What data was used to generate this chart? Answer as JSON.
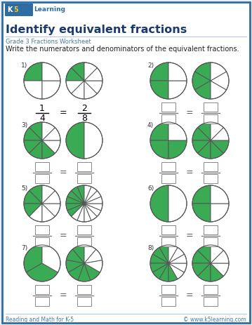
{
  "title": "Identify equivalent fractions",
  "subtitle": "Grade 3 Fractions Worksheet",
  "instruction": "Write the numerators and denominators of the equivalent fractions.",
  "footer_left": "Reading and Math for K-5",
  "footer_right": "© www.k5learning.com",
  "bg_color": "#e8eef5",
  "border_color": "#2e6da4",
  "title_color": "#1a3a6b",
  "subtitle_color": "#4a7aaa",
  "green_color": "#3aaa55",
  "pie_edge_color": "#555555",
  "problems": [
    {
      "num": "1)",
      "pie1": {
        "slices": 4,
        "filled": 1,
        "start_angle": 90
      },
      "pie2": {
        "slices": 8,
        "filled": 2,
        "start_angle": 90
      },
      "frac1_num": "1",
      "frac1_den": "4",
      "frac2_num": "2",
      "frac2_den": "8",
      "show_answer": true
    },
    {
      "num": "2)",
      "pie1": {
        "slices": 4,
        "filled": 2,
        "start_angle": 90
      },
      "pie2": {
        "slices": 6,
        "filled": 3,
        "start_angle": 90
      },
      "show_answer": false
    },
    {
      "num": "3)",
      "pie1": {
        "slices": 8,
        "filled": 5,
        "start_angle": 90
      },
      "pie2": {
        "slices": 2,
        "filled": 1,
        "start_angle": 90
      },
      "show_answer": false
    },
    {
      "num": "4)",
      "pie1": {
        "slices": 4,
        "filled": 3,
        "start_angle": 90
      },
      "pie2": {
        "slices": 8,
        "filled": 6,
        "start_angle": 90
      },
      "show_answer": false
    },
    {
      "num": "5)",
      "pie1": {
        "slices": 8,
        "filled": 3,
        "start_angle": 90
      },
      "pie2": {
        "slices": 16,
        "filled": 6,
        "start_angle": 90
      },
      "show_answer": false
    },
    {
      "num": "6)",
      "pie1": {
        "slices": 2,
        "filled": 1,
        "start_angle": 90
      },
      "pie2": {
        "slices": 4,
        "filled": 2,
        "start_angle": 90
      },
      "show_answer": false
    },
    {
      "num": "7)",
      "pie1": {
        "slices": 3,
        "filled": 2,
        "start_angle": 90
      },
      "pie2": {
        "slices": 9,
        "filled": 6,
        "start_angle": 90
      },
      "show_answer": false
    },
    {
      "num": "8)",
      "pie1": {
        "slices": 12,
        "filled": 7,
        "start_angle": 90
      },
      "pie2": {
        "slices": 8,
        "filled": 5,
        "start_angle": 90
      },
      "show_answer": false
    }
  ]
}
